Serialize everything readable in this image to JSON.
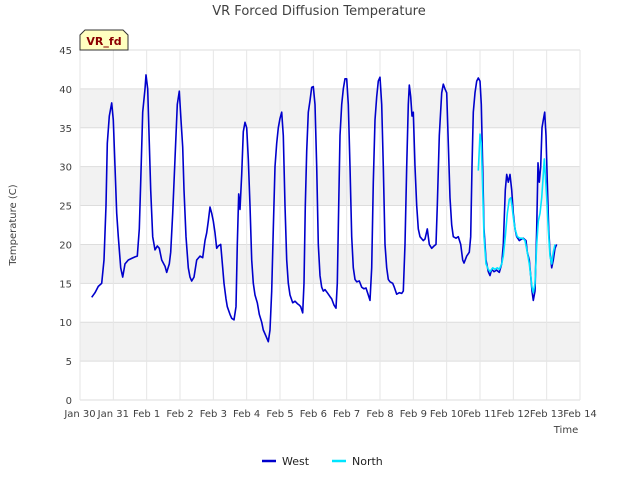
{
  "chart_data": {
    "type": "line",
    "title": "VR Forced Diffusion Temperature",
    "xlabel": "Time",
    "ylabel": "Temperature (C)",
    "badge": "VR_fd",
    "ylim": [
      0,
      45
    ],
    "yticks": [
      0,
      5,
      10,
      15,
      20,
      25,
      30,
      35,
      40,
      45
    ],
    "xlim": [
      0,
      15
    ],
    "xticks": [
      {
        "x": 0,
        "label": "Jan 30"
      },
      {
        "x": 1,
        "label": "Jan 31"
      },
      {
        "x": 2,
        "label": "Feb 1"
      },
      {
        "x": 3,
        "label": "Feb 2"
      },
      {
        "x": 4,
        "label": "Feb 3"
      },
      {
        "x": 5,
        "label": "Feb 4"
      },
      {
        "x": 6,
        "label": "Feb 5"
      },
      {
        "x": 7,
        "label": "Feb 6"
      },
      {
        "x": 8,
        "label": "Feb 7"
      },
      {
        "x": 9,
        "label": "Feb 8"
      },
      {
        "x": 10,
        "label": "Feb 9"
      },
      {
        "x": 11,
        "label": "Feb 10"
      },
      {
        "x": 12,
        "label": "Feb 11"
      },
      {
        "x": 13,
        "label": "Feb 12"
      },
      {
        "x": 14,
        "label": "Feb 13"
      },
      {
        "x": 15,
        "label": "Feb 14"
      }
    ],
    "grid": "horizontal bands",
    "legend_position": "bottom-center",
    "series": [
      {
        "name": "West",
        "color": "#0000cc",
        "points": [
          [
            0.35,
            13.2
          ],
          [
            0.45,
            13.8
          ],
          [
            0.55,
            14.6
          ],
          [
            0.65,
            15.0
          ],
          [
            0.72,
            18
          ],
          [
            0.78,
            25
          ],
          [
            0.82,
            33
          ],
          [
            0.88,
            36.5
          ],
          [
            0.95,
            38.2
          ],
          [
            1.0,
            36
          ],
          [
            1.05,
            30
          ],
          [
            1.1,
            24
          ],
          [
            1.15,
            21
          ],
          [
            1.22,
            17
          ],
          [
            1.28,
            15.8
          ],
          [
            1.35,
            17.5
          ],
          [
            1.45,
            18.0
          ],
          [
            1.55,
            18.2
          ],
          [
            1.65,
            18.4
          ],
          [
            1.72,
            18.5
          ],
          [
            1.78,
            22
          ],
          [
            1.82,
            28
          ],
          [
            1.88,
            37
          ],
          [
            1.95,
            40
          ],
          [
            1.98,
            41.8
          ],
          [
            2.03,
            40
          ],
          [
            2.08,
            33
          ],
          [
            2.12,
            27
          ],
          [
            2.18,
            21
          ],
          [
            2.25,
            19.3
          ],
          [
            2.32,
            19.8
          ],
          [
            2.38,
            19.5
          ],
          [
            2.45,
            18
          ],
          [
            2.55,
            17.2
          ],
          [
            2.6,
            16.4
          ],
          [
            2.68,
            17.5
          ],
          [
            2.72,
            19
          ],
          [
            2.78,
            24
          ],
          [
            2.85,
            31
          ],
          [
            2.92,
            38
          ],
          [
            2.98,
            39.7
          ],
          [
            3.03,
            36
          ],
          [
            3.08,
            32.5
          ],
          [
            3.12,
            27
          ],
          [
            3.18,
            21
          ],
          [
            3.25,
            17
          ],
          [
            3.3,
            15.8
          ],
          [
            3.35,
            15.3
          ],
          [
            3.42,
            15.8
          ],
          [
            3.5,
            18.0
          ],
          [
            3.6,
            18.5
          ],
          [
            3.68,
            18.3
          ],
          [
            3.75,
            20.5
          ],
          [
            3.8,
            21.5
          ],
          [
            3.85,
            23
          ],
          [
            3.9,
            24.8
          ],
          [
            3.95,
            24
          ],
          [
            4.0,
            23
          ],
          [
            4.05,
            21.5
          ],
          [
            4.1,
            19.5
          ],
          [
            4.15,
            19.8
          ],
          [
            4.22,
            20
          ],
          [
            4.28,
            17
          ],
          [
            4.32,
            15
          ],
          [
            4.38,
            13
          ],
          [
            4.42,
            12
          ],
          [
            4.5,
            11
          ],
          [
            4.55,
            10.5
          ],
          [
            4.62,
            10.3
          ],
          [
            4.68,
            12
          ],
          [
            4.72,
            20
          ],
          [
            4.76,
            26.5
          ],
          [
            4.8,
            24.5
          ],
          [
            4.85,
            29
          ],
          [
            4.9,
            34.5
          ],
          [
            4.95,
            35.7
          ],
          [
            5.0,
            35
          ],
          [
            5.05,
            31
          ],
          [
            5.1,
            25
          ],
          [
            5.15,
            18
          ],
          [
            5.2,
            15
          ],
          [
            5.25,
            13.5
          ],
          [
            5.32,
            12.5
          ],
          [
            5.38,
            11
          ],
          [
            5.45,
            10
          ],
          [
            5.5,
            9
          ],
          [
            5.58,
            8.2
          ],
          [
            5.65,
            7.5
          ],
          [
            5.7,
            9
          ],
          [
            5.75,
            14
          ],
          [
            5.8,
            22
          ],
          [
            5.85,
            30
          ],
          [
            5.9,
            33
          ],
          [
            5.95,
            35
          ],
          [
            6.0,
            36.2
          ],
          [
            6.05,
            37.0
          ],
          [
            6.1,
            34
          ],
          [
            6.15,
            25
          ],
          [
            6.2,
            18
          ],
          [
            6.25,
            15
          ],
          [
            6.3,
            13.5
          ],
          [
            6.38,
            12.5
          ],
          [
            6.45,
            12.7
          ],
          [
            6.52,
            12.4
          ],
          [
            6.58,
            12.2
          ],
          [
            6.62,
            12
          ],
          [
            6.68,
            11.2
          ],
          [
            6.72,
            15
          ],
          [
            6.76,
            25
          ],
          [
            6.8,
            32
          ],
          [
            6.85,
            37
          ],
          [
            6.9,
            38.5
          ],
          [
            6.95,
            40.2
          ],
          [
            7.0,
            40.3
          ],
          [
            7.05,
            38
          ],
          [
            7.1,
            30
          ],
          [
            7.15,
            20
          ],
          [
            7.2,
            16
          ],
          [
            7.25,
            14.5
          ],
          [
            7.3,
            14
          ],
          [
            7.35,
            14.2
          ],
          [
            7.42,
            13.8
          ],
          [
            7.5,
            13.3
          ],
          [
            7.55,
            13.0
          ],
          [
            7.62,
            12.2
          ],
          [
            7.68,
            11.8
          ],
          [
            7.72,
            15
          ],
          [
            7.76,
            25
          ],
          [
            7.8,
            34
          ],
          [
            7.85,
            38
          ],
          [
            7.9,
            40
          ],
          [
            7.95,
            41.3
          ],
          [
            8.0,
            41.3
          ],
          [
            8.05,
            38
          ],
          [
            8.1,
            30
          ],
          [
            8.15,
            21
          ],
          [
            8.2,
            17
          ],
          [
            8.25,
            15.5
          ],
          [
            8.3,
            15.2
          ],
          [
            8.38,
            15.3
          ],
          [
            8.45,
            14.5
          ],
          [
            8.52,
            14.3
          ],
          [
            8.58,
            14.4
          ],
          [
            8.65,
            13.5
          ],
          [
            8.7,
            12.8
          ],
          [
            8.75,
            17
          ],
          [
            8.8,
            28
          ],
          [
            8.85,
            36
          ],
          [
            8.9,
            39
          ],
          [
            8.95,
            41
          ],
          [
            9.0,
            41.5
          ],
          [
            9.05,
            38
          ],
          [
            9.1,
            30
          ],
          [
            9.15,
            20
          ],
          [
            9.2,
            17
          ],
          [
            9.25,
            15.5
          ],
          [
            9.3,
            15.2
          ],
          [
            9.38,
            15
          ],
          [
            9.42,
            14.6
          ],
          [
            9.5,
            13.6
          ],
          [
            9.58,
            13.8
          ],
          [
            9.65,
            13.7
          ],
          [
            9.7,
            14
          ],
          [
            9.75,
            20
          ],
          [
            9.8,
            30
          ],
          [
            9.85,
            38
          ],
          [
            9.88,
            40.5
          ],
          [
            9.92,
            39
          ],
          [
            9.96,
            36.5
          ],
          [
            10.0,
            37
          ],
          [
            10.05,
            30
          ],
          [
            10.1,
            25
          ],
          [
            10.15,
            22
          ],
          [
            10.2,
            21
          ],
          [
            10.3,
            20.5
          ],
          [
            10.35,
            20.7
          ],
          [
            10.42,
            22
          ],
          [
            10.48,
            20
          ],
          [
            10.55,
            19.5
          ],
          [
            10.62,
            19.8
          ],
          [
            10.68,
            20
          ],
          [
            10.72,
            25
          ],
          [
            10.78,
            34
          ],
          [
            10.85,
            39.5
          ],
          [
            10.9,
            40.6
          ],
          [
            10.95,
            40
          ],
          [
            11.0,
            39.5
          ],
          [
            11.05,
            33
          ],
          [
            11.1,
            26
          ],
          [
            11.15,
            22.5
          ],
          [
            11.2,
            21
          ],
          [
            11.28,
            20.8
          ],
          [
            11.35,
            21
          ],
          [
            11.42,
            20
          ],
          [
            11.48,
            18
          ],
          [
            11.52,
            17.6
          ],
          [
            11.6,
            18.5
          ],
          [
            11.68,
            19
          ],
          [
            11.72,
            21
          ],
          [
            11.76,
            30
          ],
          [
            11.8,
            37
          ],
          [
            11.85,
            39.5
          ],
          [
            11.9,
            41
          ],
          [
            11.95,
            41.4
          ],
          [
            12.0,
            41
          ],
          [
            12.04,
            38
          ],
          [
            12.08,
            30
          ],
          [
            12.12,
            22
          ],
          [
            12.18,
            18
          ],
          [
            12.25,
            16.5
          ],
          [
            12.3,
            16
          ],
          [
            12.35,
            16.8
          ],
          [
            12.42,
            16.5
          ],
          [
            12.5,
            16.7
          ],
          [
            12.58,
            16.4
          ],
          [
            12.65,
            17.5
          ],
          [
            12.7,
            20
          ],
          [
            12.76,
            27
          ],
          [
            12.8,
            29
          ],
          [
            12.85,
            28
          ],
          [
            12.9,
            29
          ],
          [
            12.95,
            27
          ],
          [
            13.0,
            24
          ],
          [
            13.05,
            22
          ],
          [
            13.1,
            21
          ],
          [
            13.18,
            20.5
          ],
          [
            13.25,
            20.7
          ],
          [
            13.3,
            20.8
          ],
          [
            13.38,
            20.5
          ],
          [
            13.42,
            19
          ],
          [
            13.48,
            18
          ],
          [
            13.52,
            16
          ],
          [
            13.56,
            14
          ],
          [
            13.6,
            12.8
          ],
          [
            13.65,
            14
          ],
          [
            13.7,
            22
          ],
          [
            13.74,
            30.5
          ],
          [
            13.78,
            28
          ],
          [
            13.82,
            30
          ],
          [
            13.86,
            35
          ],
          [
            13.9,
            36
          ],
          [
            13.94,
            37
          ],
          [
            13.98,
            34
          ],
          [
            14.02,
            28
          ],
          [
            14.06,
            22
          ],
          [
            14.1,
            19
          ],
          [
            14.15,
            17
          ],
          [
            14.2,
            18
          ],
          [
            14.25,
            19.5
          ],
          [
            14.3,
            20
          ]
        ]
      },
      {
        "name": "North",
        "color": "#00e5ff",
        "points": [
          [
            11.95,
            29.5
          ],
          [
            12.0,
            34.2
          ],
          [
            12.04,
            33
          ],
          [
            12.08,
            27
          ],
          [
            12.12,
            21
          ],
          [
            12.18,
            17.5
          ],
          [
            12.25,
            16.8
          ],
          [
            12.3,
            16.5
          ],
          [
            12.38,
            17
          ],
          [
            12.45,
            16.8
          ],
          [
            12.52,
            17
          ],
          [
            12.58,
            16.8
          ],
          [
            12.65,
            17.5
          ],
          [
            12.7,
            18.5
          ],
          [
            12.76,
            21
          ],
          [
            12.82,
            24
          ],
          [
            12.88,
            25.8
          ],
          [
            12.92,
            26
          ],
          [
            12.96,
            25
          ],
          [
            13.0,
            23.5
          ],
          [
            13.05,
            22
          ],
          [
            13.12,
            21
          ],
          [
            13.2,
            20.8
          ],
          [
            13.28,
            20.8
          ],
          [
            13.35,
            20.5
          ],
          [
            13.42,
            19
          ],
          [
            13.48,
            17.5
          ],
          [
            13.52,
            16
          ],
          [
            13.56,
            14.5
          ],
          [
            13.6,
            13.8
          ],
          [
            13.65,
            15
          ],
          [
            13.7,
            20
          ],
          [
            13.75,
            23
          ],
          [
            13.8,
            24
          ],
          [
            13.85,
            26
          ],
          [
            13.9,
            29
          ],
          [
            13.93,
            31
          ],
          [
            13.96,
            29
          ],
          [
            14.0,
            26
          ],
          [
            14.05,
            22
          ],
          [
            14.1,
            18.5
          ],
          [
            14.15,
            17.5
          ],
          [
            14.2,
            19
          ],
          [
            14.25,
            20
          ]
        ]
      }
    ]
  }
}
